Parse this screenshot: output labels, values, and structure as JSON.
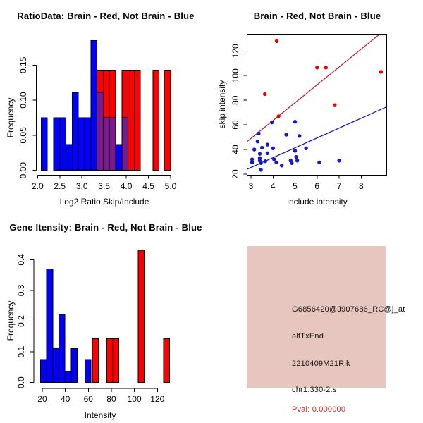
{
  "window": {
    "background": "#FFFFFF"
  },
  "chart_data": [
    {
      "type": "bar",
      "title": "RatioData: Brain - Red, Not Brain - Blue",
      "xlabel": "Log2 Ratio Skip/Include",
      "ylabel": "Frequency",
      "xlim": [
        1.93,
        5.1
      ],
      "ylim": [
        0,
        0.19
      ],
      "xtick_values": [
        2.0,
        2.5,
        3.0,
        3.5,
        4.0,
        4.5,
        5.0
      ],
      "xtick_labels": [
        "2.0",
        "2.5",
        "3.0",
        "3.5",
        "4.0",
        "4.5",
        "5.0"
      ],
      "ytick_values": [
        0,
        0.05,
        0.1,
        0.15
      ],
      "ytick_labels": [
        "0.00",
        "0.05",
        "0.10",
        "0.15"
      ],
      "grid": false,
      "overlap_color": "#7A1A8C",
      "series": [
        {
          "name": "Not Brain",
          "color": "#0000FF",
          "bars": [
            [
              2.08,
              2.22,
              0.075
            ],
            [
              2.36,
              2.5,
              0.075
            ],
            [
              2.5,
              2.64,
              0.075
            ],
            [
              2.64,
              2.78,
              0.037
            ],
            [
              2.78,
              2.92,
              0.111
            ],
            [
              2.92,
              3.06,
              0.075
            ],
            [
              3.06,
              3.2,
              0.075
            ],
            [
              3.2,
              3.34,
              0.185
            ],
            [
              3.34,
              3.48,
              0.111
            ],
            [
              3.48,
              3.62,
              0.075
            ],
            [
              3.62,
              3.76,
              0.075
            ],
            [
              3.76,
              3.9,
              0.037
            ],
            [
              3.9,
              4.04,
              0.075
            ]
          ]
        },
        {
          "name": "Brain",
          "color": "#FF0000",
          "bars": [
            [
              3.34,
              3.48,
              0.143
            ],
            [
              3.48,
              3.62,
              0.143
            ],
            [
              3.62,
              3.76,
              0.143
            ],
            [
              3.9,
              4.04,
              0.143
            ],
            [
              4.04,
              4.18,
              0.143
            ],
            [
              4.18,
              4.32,
              0.143
            ],
            [
              4.6,
              4.74,
              0.143
            ],
            [
              4.86,
              5.0,
              0.143
            ]
          ]
        }
      ]
    },
    {
      "type": "scatter",
      "title": "Brain - Red, Not Brain - Blue",
      "xlabel": "include intensity",
      "ylabel": "skip intensity",
      "xlim": [
        2.83,
        9.15
      ],
      "ylim": [
        19.3,
        133.7
      ],
      "xtick_values": [
        3,
        4,
        5,
        6,
        7,
        8
      ],
      "xtick_labels": [
        "3",
        "4",
        "5",
        "6",
        "7",
        "8"
      ],
      "ytick_values": [
        20,
        40,
        60,
        80,
        100,
        120
      ],
      "ytick_labels": [
        "20",
        "40",
        "60",
        "80",
        "100",
        "120"
      ],
      "grid": false,
      "series": [
        {
          "name": "Brain",
          "color": "#EE0000",
          "points": [
            [
              3.63,
              85
            ],
            [
              4.17,
              128
            ],
            [
              4.25,
              67
            ],
            [
              6.0,
              106.5
            ],
            [
              6.4,
              106.5
            ],
            [
              6.8,
              76
            ],
            [
              8.9,
              103
            ]
          ]
        },
        {
          "name": "Not Brain",
          "color": "#1818CC",
          "points": [
            [
              3.05,
              32
            ],
            [
              3.05,
              29.5
            ],
            [
              3.15,
              40
            ],
            [
              3.35,
              53
            ],
            [
              3.3,
              46.5
            ],
            [
              3.4,
              36.5
            ],
            [
              3.4,
              33
            ],
            [
              3.4,
              31
            ],
            [
              3.45,
              29
            ],
            [
              3.45,
              23.5
            ],
            [
              3.5,
              41.5
            ],
            [
              3.65,
              30.5
            ],
            [
              3.75,
              44
            ],
            [
              3.75,
              37
            ],
            [
              3.95,
              62
            ],
            [
              4.0,
              41
            ],
            [
              4.05,
              32
            ],
            [
              4.15,
              29.5
            ],
            [
              4.4,
              27
            ],
            [
              4.6,
              52
            ],
            [
              4.8,
              31
            ],
            [
              4.85,
              29
            ],
            [
              5.0,
              62.5
            ],
            [
              5.0,
              39
            ],
            [
              5.05,
              34
            ],
            [
              5.1,
              31
            ],
            [
              5.2,
              51
            ],
            [
              5.5,
              41
            ],
            [
              6.1,
              29.5
            ],
            [
              7.0,
              31
            ]
          ]
        }
      ],
      "fit_lines": [
        {
          "name": "Brain fit",
          "color": "#C2132E",
          "slope": 14.5,
          "intercept": 5.5
        },
        {
          "name": "Not Brain fit",
          "color": "#0A0AB4",
          "slope": 8.0,
          "intercept": 1.4
        }
      ]
    },
    {
      "type": "bar",
      "title": "Gene Itensity: Brain - Red, Not Brain - Blue",
      "xlabel": "Intensity",
      "ylabel": "Frequency",
      "xlim": [
        15,
        135
      ],
      "ylim": [
        0,
        0.44
      ],
      "xtick_values": [
        20,
        40,
        60,
        80,
        100,
        120
      ],
      "xtick_labels": [
        "20",
        "40",
        "60",
        "80",
        "100",
        "120"
      ],
      "ytick_values": [
        0,
        0.1,
        0.2,
        0.3,
        0.4
      ],
      "ytick_labels": [
        "0.0",
        "0.1",
        "0.2",
        "0.3",
        "0.4"
      ],
      "grid": false,
      "overlap_color": "#7A1A8C",
      "series": [
        {
          "name": "Not Brain",
          "color": "#0000FF",
          "bars": [
            [
              18.5,
              23.8,
              0.075
            ],
            [
              23.8,
              29.1,
              0.37
            ],
            [
              29.1,
              34.4,
              0.111
            ],
            [
              34.4,
              39.7,
              0.222
            ],
            [
              39.7,
              45.0,
              0.037
            ],
            [
              45.0,
              50.3,
              0.111
            ],
            [
              57.0,
              62.3,
              0.075
            ]
          ]
        },
        {
          "name": "Brain",
          "color": "#FF0000",
          "bars": [
            [
              63.5,
              68.8,
              0.143
            ],
            [
              75.9,
              81.2,
              0.143
            ],
            [
              81.2,
              86.5,
              0.143
            ],
            [
              103.3,
              108.6,
              0.43
            ],
            [
              125.3,
              130.6,
              0.143
            ]
          ]
        }
      ]
    }
  ],
  "info_box": {
    "background": "#E6C6BF",
    "probe_id": "G6856420@J907686_RC@j_at",
    "event_type": "altTxEnd",
    "gene_symbol": "2210409M21Rik",
    "locus": "chr1.330-2.s",
    "pval": "Pval: 0.000000",
    "pval_color": "#C52F26",
    "text_color": "#151515"
  }
}
